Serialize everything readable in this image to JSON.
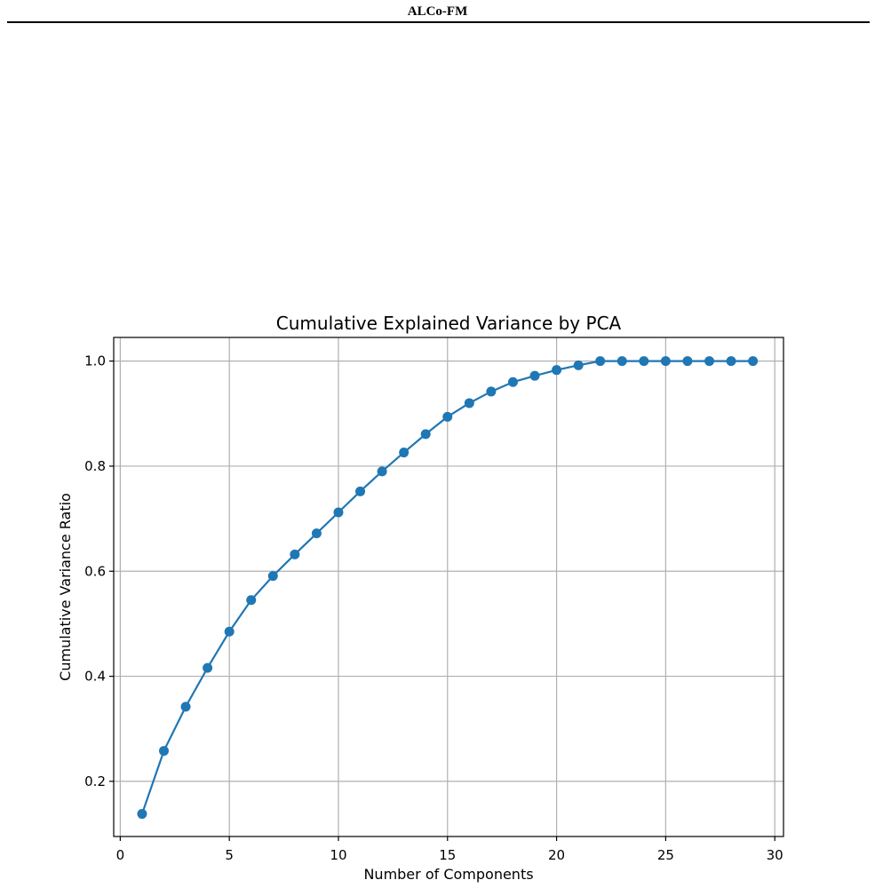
{
  "header": {
    "running_head": "ALCo-FM"
  },
  "chart_data": {
    "type": "line",
    "title": "Cumulative Explained Variance by PCA",
    "xlabel": "Number of Components",
    "ylabel": "Cumulative Variance Ratio",
    "xlim": [
      -0.3,
      30.4
    ],
    "ylim": [
      0.095,
      1.045
    ],
    "xticks": [
      0,
      5,
      10,
      15,
      20,
      25,
      30
    ],
    "yticks": [
      0.2,
      0.4,
      0.6,
      0.8,
      1.0
    ],
    "ytick_labels": [
      "0.2",
      "0.4",
      "0.6",
      "0.8",
      "1.0"
    ],
    "grid": true,
    "marker": "circle",
    "color": "#1f77b4",
    "series": [
      {
        "x": [
          1,
          2,
          3,
          4,
          5,
          6,
          7,
          8,
          9,
          10,
          11,
          12,
          13,
          14,
          15,
          16,
          17,
          18,
          19,
          20,
          21,
          22,
          23,
          24,
          25,
          26,
          27,
          28,
          29
        ],
        "values": [
          0.138,
          0.258,
          0.342,
          0.416,
          0.485,
          0.545,
          0.591,
          0.632,
          0.672,
          0.712,
          0.752,
          0.79,
          0.826,
          0.861,
          0.894,
          0.92,
          0.942,
          0.96,
          0.972,
          0.983,
          0.992,
          1.0,
          1.0,
          1.0,
          1.0,
          1.0,
          1.0,
          1.0,
          1.0
        ]
      }
    ]
  }
}
